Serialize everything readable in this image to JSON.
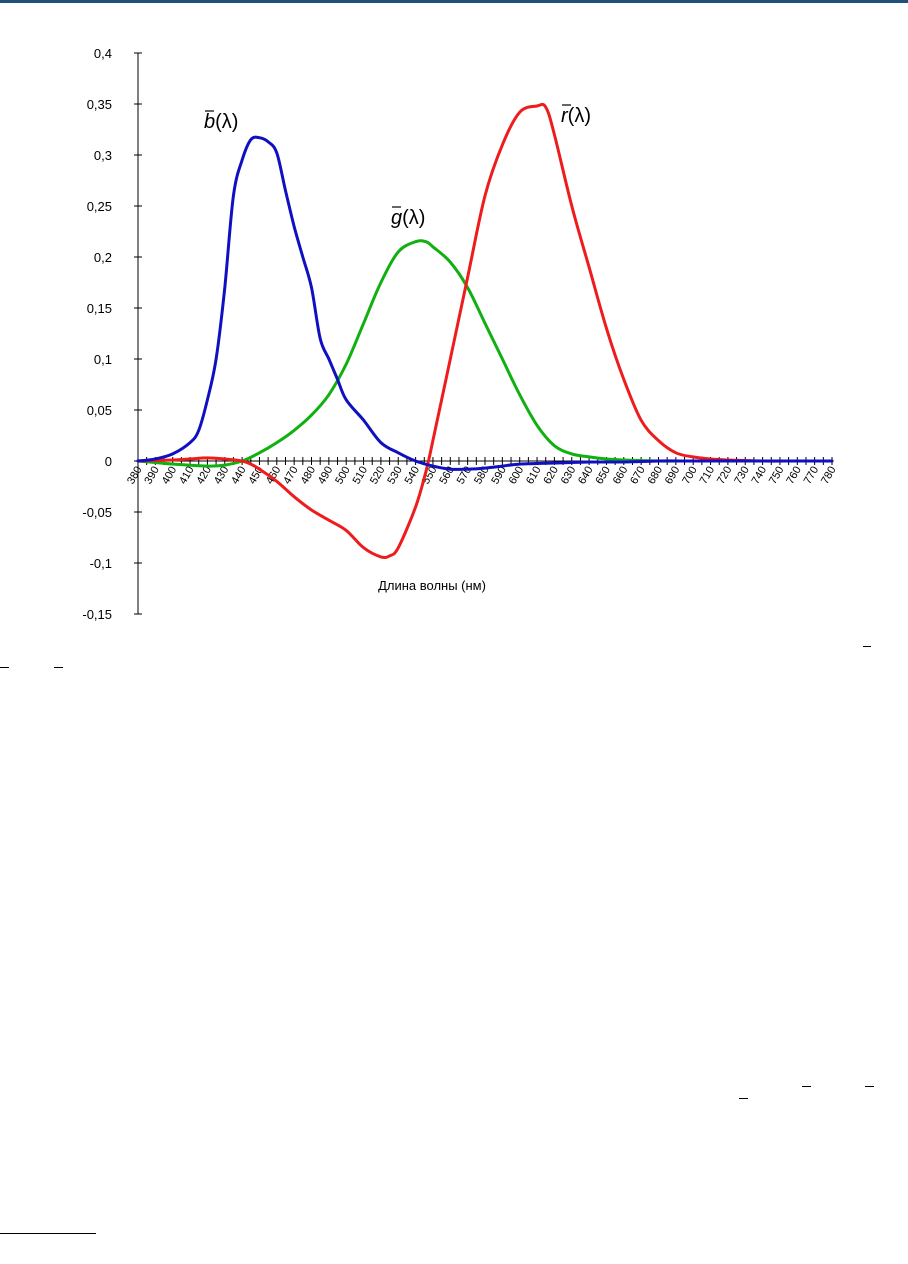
{
  "chart_data": {
    "type": "line",
    "xlabel": "Длина волны (нм)",
    "ylabel": "",
    "xlim": [
      380,
      780
    ],
    "ylim": [
      -0.15,
      0.4
    ],
    "y_ticks": [
      "0,4",
      "0,35",
      "0,3",
      "0,25",
      "0,2",
      "0,15",
      "0,1",
      "0,05",
      "0",
      "-0,05",
      "-0,1",
      "-0,15"
    ],
    "x_ticks": [
      "380",
      "390",
      "400",
      "410",
      "420",
      "430",
      "440",
      "450",
      "460",
      "470",
      "480",
      "490",
      "500",
      "510",
      "520",
      "530",
      "540",
      "550",
      "560",
      "570",
      "580",
      "590",
      "600",
      "610",
      "620",
      "630",
      "640",
      "650",
      "660",
      "670",
      "680",
      "690",
      "700",
      "710",
      "720",
      "730",
      "740",
      "750",
      "760",
      "770",
      "780"
    ],
    "grid": false,
    "series": [
      {
        "name": "b(λ)",
        "label_base": "b",
        "label_arg": "(λ)",
        "color": "#1010c0",
        "x": [
          380,
          390,
          400,
          410,
          415,
          420,
          425,
          430,
          435,
          440,
          445,
          450,
          455,
          460,
          465,
          470,
          475,
          480,
          485,
          490,
          495,
          500,
          510,
          520,
          530,
          540,
          550,
          560,
          570,
          580,
          590,
          600,
          620,
          640,
          660,
          680,
          700,
          720,
          740,
          760,
          780
        ],
        "values": [
          0.0,
          0.002,
          0.007,
          0.018,
          0.03,
          0.06,
          0.1,
          0.17,
          0.26,
          0.295,
          0.315,
          0.317,
          0.313,
          0.302,
          0.265,
          0.23,
          0.2,
          0.17,
          0.12,
          0.1,
          0.08,
          0.06,
          0.04,
          0.018,
          0.008,
          0.0,
          -0.005,
          -0.008,
          -0.008,
          -0.007,
          -0.005,
          -0.003,
          -0.002,
          -0.001,
          -0.001,
          0.0,
          0.0,
          0.0,
          0.0,
          0.0,
          0.0
        ]
      },
      {
        "name": "g(λ)",
        "label_base": "g",
        "label_arg": "(λ)",
        "color": "#10b010",
        "x": [
          380,
          400,
          420,
          430,
          440,
          450,
          460,
          470,
          480,
          490,
          500,
          510,
          520,
          530,
          540,
          546,
          550,
          560,
          570,
          580,
          590,
          600,
          610,
          620,
          630,
          640,
          650,
          660,
          680,
          700,
          740,
          780
        ],
        "values": [
          0.0,
          -0.003,
          -0.005,
          -0.004,
          0.0,
          0.008,
          0.018,
          0.03,
          0.045,
          0.065,
          0.095,
          0.135,
          0.175,
          0.205,
          0.215,
          0.215,
          0.21,
          0.195,
          0.17,
          0.135,
          0.1,
          0.065,
          0.035,
          0.015,
          0.007,
          0.004,
          0.002,
          0.001,
          0.0,
          0.0,
          0.0,
          0.0
        ]
      },
      {
        "name": "r(λ)",
        "label_base": "r",
        "label_arg": "(λ)",
        "color": "#ee1c1c",
        "x": [
          380,
          400,
          410,
          420,
          430,
          440,
          445,
          450,
          460,
          470,
          480,
          490,
          500,
          510,
          520,
          525,
          530,
          540,
          546,
          550,
          560,
          570,
          580,
          590,
          600,
          610,
          615,
          620,
          630,
          640,
          650,
          660,
          670,
          680,
          690,
          700,
          710,
          720,
          740,
          760,
          780
        ],
        "values": [
          0.0,
          0.001,
          0.002,
          0.003,
          0.002,
          0.0,
          -0.003,
          -0.008,
          -0.02,
          -0.035,
          -0.048,
          -0.058,
          -0.068,
          -0.085,
          -0.094,
          -0.093,
          -0.085,
          -0.045,
          -0.01,
          0.02,
          0.1,
          0.18,
          0.26,
          0.31,
          0.342,
          0.348,
          0.347,
          0.32,
          0.25,
          0.19,
          0.13,
          0.08,
          0.04,
          0.02,
          0.008,
          0.004,
          0.002,
          0.001,
          0.0,
          0.0,
          0.0
        ]
      }
    ]
  },
  "footnote_marks": {
    "left_overbars": [
      "",
      ""
    ],
    "right_overbar": ""
  }
}
